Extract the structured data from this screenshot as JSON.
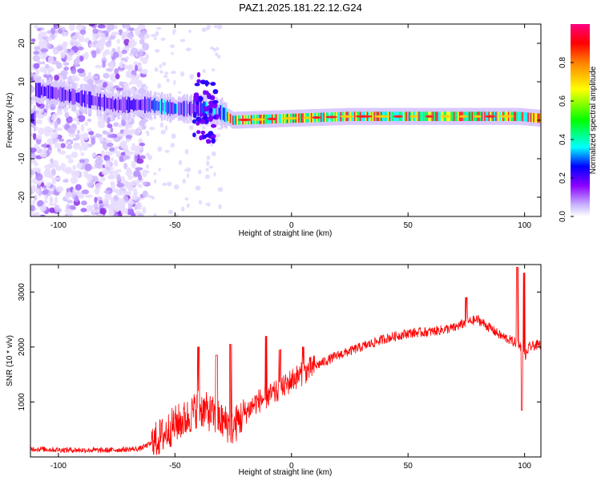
{
  "figure": {
    "title": "PAZ1.2025.181.22.12.G24"
  },
  "chart_data": [
    {
      "type": "heatmap",
      "xlabel": "Height of straight line (km)",
      "ylabel": "Frequency (Hz)",
      "xlim": [
        -112,
        107
      ],
      "ylim": [
        -25,
        25
      ],
      "xticks": [
        -100,
        -50,
        0,
        50,
        100
      ],
      "yticks": [
        -20,
        -10,
        0,
        10,
        20
      ],
      "colorbar": {
        "label": "Normalized spectral amplitude",
        "range": [
          0,
          1
        ],
        "ticks": [
          0.0,
          0.2,
          0.4,
          0.6,
          0.8
        ],
        "colors": [
          "#ffffff",
          "#c8b4ff",
          "#8c00ff",
          "#0000ff",
          "#00ffff",
          "#00ff00",
          "#ffff00",
          "#ff8000",
          "#ff0000",
          "#ff0080"
        ]
      },
      "ridge": [
        {
          "x": -110,
          "y": 8
        },
        {
          "x": -75,
          "y": 4
        },
        {
          "x": -60,
          "y": 4
        },
        {
          "x": -50,
          "y": 3
        },
        {
          "x": -40,
          "y": 3
        },
        {
          "x": -30,
          "y": 2
        },
        {
          "x": -25,
          "y": 0
        },
        {
          "x": 0,
          "y": 0.5
        },
        {
          "x": 25,
          "y": 1
        },
        {
          "x": 50,
          "y": 1
        },
        {
          "x": 75,
          "y": 1
        },
        {
          "x": 98,
          "y": 1
        },
        {
          "x": 107,
          "y": 0.5
        }
      ]
    },
    {
      "type": "line",
      "xlabel": "Height of straight line (km)",
      "ylabel": "SNR (10 * v/v)",
      "xlim": [
        -112,
        107
      ],
      "ylim": [
        0,
        3500
      ],
      "xticks": [
        -100,
        -50,
        0,
        50,
        100
      ],
      "yticks": [
        1000,
        2000,
        3000
      ],
      "series": [
        {
          "color": "#ff0000",
          "envelope_x": [
            -112,
            -100,
            -80,
            -65,
            -60,
            -55,
            -50,
            -45,
            -40,
            -35,
            -30,
            -25,
            -20,
            -15,
            -10,
            -5,
            0,
            10,
            20,
            30,
            40,
            50,
            60,
            70,
            75,
            80,
            85,
            90,
            95,
            98,
            100,
            102,
            107
          ],
          "envelope_y": [
            150,
            130,
            120,
            150,
            250,
            400,
            600,
            700,
            900,
            800,
            650,
            550,
            800,
            1000,
            1100,
            1200,
            1400,
            1650,
            1850,
            2000,
            2150,
            2250,
            2280,
            2350,
            2450,
            2500,
            2350,
            2200,
            2100,
            2050,
            1800,
            2000,
            2050
          ],
          "spikes": [
            {
              "x": -40,
              "y": 2000
            },
            {
              "x": -32,
              "y": 1850
            },
            {
              "x": -26,
              "y": 2050
            },
            {
              "x": -11,
              "y": 2200
            },
            {
              "x": -5,
              "y": 1950
            },
            {
              "x": 5,
              "y": 2000
            },
            {
              "x": 75,
              "y": 2900
            },
            {
              "x": 97,
              "y": 3450
            },
            {
              "x": 100,
              "y": 3350
            },
            {
              "x": 99,
              "y": 850
            }
          ]
        }
      ]
    }
  ]
}
